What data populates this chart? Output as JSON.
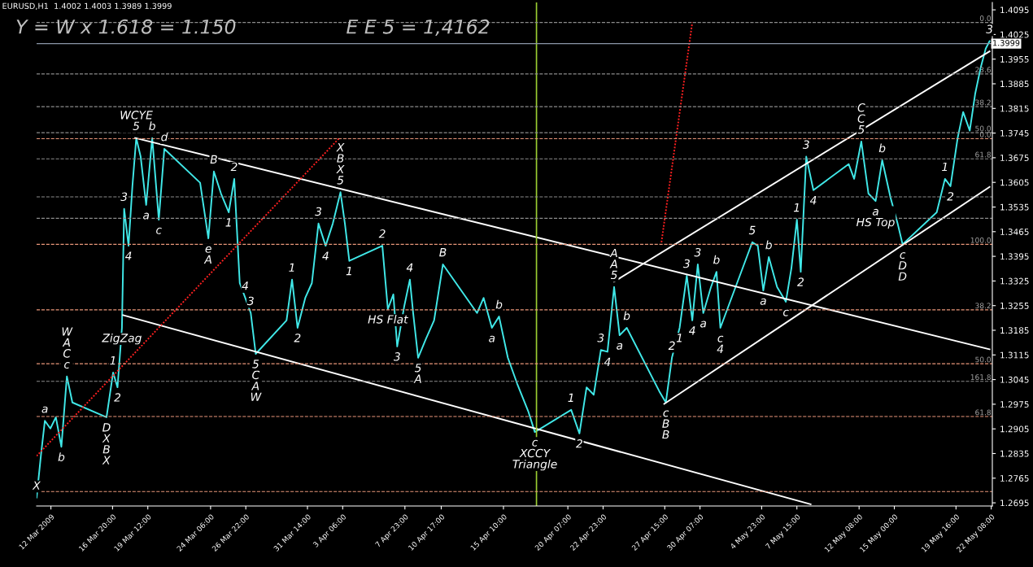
{
  "chart_data": {
    "type": "line",
    "title": "EURUSD,H1  1.4002 1.4003 1.3989 1.3999",
    "xlim": [
      "2009-03-11T02:00",
      "2009-05-22T10:00"
    ],
    "ylim": [
      1.2686,
      1.4116
    ],
    "xticks": [
      {
        "value": "2009-03-12T04:00",
        "label": "12 Mar 2009"
      },
      {
        "value": "2009-03-16T20:00",
        "label": "16 Mar 20:00"
      },
      {
        "value": "2009-03-19T12:00",
        "label": "19 Mar 12:00"
      },
      {
        "value": "2009-03-24T06:00",
        "label": "24 Mar 06:00"
      },
      {
        "value": "2009-03-26T22:00",
        "label": "26 Mar 22:00"
      },
      {
        "value": "2009-03-31T14:00",
        "label": "31 Mar 14:00"
      },
      {
        "value": "2009-04-03T06:00",
        "label": "3 Apr 06:00"
      },
      {
        "value": "2009-04-07T23:00",
        "label": "7 Apr 23:00"
      },
      {
        "value": "2009-04-10T17:00",
        "label": "10 Apr 17:00"
      },
      {
        "value": "2009-04-15T10:00",
        "label": "15 Apr 10:00"
      },
      {
        "value": "2009-04-20T07:00",
        "label": "20 Apr 07:00"
      },
      {
        "value": "2009-04-22T23:00",
        "label": "22 Apr 23:00"
      },
      {
        "value": "2009-04-27T15:00",
        "label": "27 Apr 15:00"
      },
      {
        "value": "2009-04-30T07:00",
        "label": "30 Apr 07:00"
      },
      {
        "value": "2009-05-04T23:00",
        "label": "4 May 23:00"
      },
      {
        "value": "2009-05-07T15:00",
        "label": "7 May 15:00"
      },
      {
        "value": "2009-05-12T08:00",
        "label": "12 May 08:00"
      },
      {
        "value": "2009-05-15T00:00",
        "label": "15 May 00:00"
      },
      {
        "value": "2009-05-19T16:00",
        "label": "19 May 16:00"
      },
      {
        "value": "2009-05-22T08:00",
        "label": "22 May 08:00"
      }
    ],
    "yticks": [
      1.4095,
      1.4025,
      1.3955,
      1.3885,
      1.3815,
      1.3745,
      1.3675,
      1.3605,
      1.3535,
      1.3465,
      1.3395,
      1.3325,
      1.3255,
      1.3185,
      1.3115,
      1.3045,
      1.2975,
      1.2905,
      1.2835,
      1.2765,
      1.2695
    ],
    "grid": false,
    "legend": false,
    "series": [
      {
        "color": "#40e8e8",
        "x": [
          "2009-03-11T02:00",
          "2009-03-11T10:00",
          "2009-03-11T17:00",
          "2009-03-12T03:00",
          "2009-03-12T13:00",
          "2009-03-12T23:00",
          "2009-03-13T09:00",
          "2009-03-13T19:00",
          "2009-03-16T09:00",
          "2009-03-16T21:00",
          "2009-03-17T05:00",
          "2009-03-17T13:00",
          "2009-03-17T17:00",
          "2009-03-18T01:00",
          "2009-03-18T08:00",
          "2009-03-18T15:00",
          "2009-03-18T23:00",
          "2009-03-19T09:00",
          "2009-03-19T20:00",
          "2009-03-20T08:00",
          "2009-03-20T18:00",
          "2009-03-23T11:00",
          "2009-03-24T02:00",
          "2009-03-24T12:00",
          "2009-03-25T01:00",
          "2009-03-25T15:00",
          "2009-03-26T01:00",
          "2009-03-26T11:00",
          "2009-03-26T21:00",
          "2009-03-27T07:00",
          "2009-03-27T16:00",
          "2009-03-30T00:00",
          "2009-03-30T10:00",
          "2009-03-30T20:00",
          "2009-03-31T10:00",
          "2009-03-31T22:00",
          "2009-04-01T10:00",
          "2009-04-01T23:00",
          "2009-04-02T12:00",
          "2009-04-03T02:00",
          "2009-04-03T10:00",
          "2009-04-03T18:00",
          "2009-04-06T06:00",
          "2009-04-06T16:00",
          "2009-04-07T02:00",
          "2009-04-07T09:00",
          "2009-04-07T22:00",
          "2009-04-08T08:00",
          "2009-04-08T14:00",
          "2009-04-08T23:00",
          "2009-04-09T13:00",
          "2009-04-10T04:00",
          "2009-04-10T20:00",
          "2009-04-13T10:00",
          "2009-04-13T22:00",
          "2009-04-14T13:00",
          "2009-04-15T02:00",
          "2009-04-15T18:00",
          "2009-04-16T11:00",
          "2009-04-17T07:00",
          "2009-04-17T19:00",
          "2009-04-20T13:00",
          "2009-04-21T04:00",
          "2009-04-21T17:00",
          "2009-04-22T06:00",
          "2009-04-22T19:00",
          "2009-04-23T07:00",
          "2009-04-23T19:00",
          "2009-04-24T05:00",
          "2009-04-24T18:00",
          "2009-04-27T05:00",
          "2009-04-27T17:00",
          "2009-04-28T04:00",
          "2009-04-28T18:00",
          "2009-04-29T07:00",
          "2009-04-29T17:00",
          "2009-04-30T03:00",
          "2009-04-30T13:00",
          "2009-05-01T03:00",
          "2009-05-01T13:00",
          "2009-05-01T20:00",
          "2009-05-04T06:00",
          "2009-05-04T16:00",
          "2009-05-05T02:00",
          "2009-05-05T12:00",
          "2009-05-06T03:00",
          "2009-05-06T19:00",
          "2009-05-07T05:00",
          "2009-05-07T15:00",
          "2009-05-07T22:00",
          "2009-05-08T08:00",
          "2009-05-08T21:00",
          "2009-05-11T13:00",
          "2009-05-11T23:00",
          "2009-05-12T12:00",
          "2009-05-13T01:00",
          "2009-05-13T14:00",
          "2009-05-14T02:00",
          "2009-05-14T17:00",
          "2009-05-15T06:00",
          "2009-05-15T15:00",
          "2009-05-18T05:00",
          "2009-05-18T20:00",
          "2009-05-19T06:00",
          "2009-05-19T19:00",
          "2009-05-20T05:00",
          "2009-05-20T17:00",
          "2009-05-21T03:00",
          "2009-05-21T13:00",
          "2009-05-21T22:00",
          "2009-05-22T05:00"
        ],
        "values": [
          1.271,
          1.2832,
          1.2928,
          1.2906,
          1.2938,
          1.2854,
          1.3054,
          1.298,
          1.2938,
          1.3065,
          1.3023,
          1.3192,
          1.353,
          1.3425,
          1.3594,
          1.3731,
          1.3678,
          1.3541,
          1.3731,
          1.3499,
          1.37,
          1.3604,
          1.3446,
          1.3636,
          1.3573,
          1.352,
          1.3615,
          1.3319,
          1.3277,
          1.3234,
          1.3118,
          1.3213,
          1.3329,
          1.3192,
          1.3277,
          1.3319,
          1.3488,
          1.3425,
          1.3488,
          1.3577,
          1.3488,
          1.3382,
          1.3425,
          1.3245,
          1.3287,
          1.3139,
          1.3255,
          1.3329,
          1.3234,
          1.3107,
          1.316,
          1.3213,
          1.3372,
          1.3234,
          1.3277,
          1.3192,
          1.3224,
          1.3107,
          1.3033,
          1.2955,
          1.2896,
          1.2959,
          1.2892,
          1.3023,
          1.3002,
          1.3129,
          1.3124,
          1.3308,
          1.3171,
          1.3192,
          1.3012,
          1.298,
          1.3107,
          1.3192,
          1.334,
          1.3213,
          1.3372,
          1.3234,
          1.3308,
          1.3351,
          1.3192,
          1.3435,
          1.3425,
          1.3298,
          1.3393,
          1.3308,
          1.3266,
          1.3361,
          1.3499,
          1.3351,
          1.3678,
          1.3583,
          1.3657,
          1.3615,
          1.3721,
          1.3573,
          1.3552,
          1.3668,
          1.3562,
          1.3488,
          1.3429,
          1.352,
          1.3615,
          1.3594,
          1.3731,
          1.3805,
          1.3752,
          1.3858,
          1.3932,
          1.3985,
          1.4006
        ]
      },
      {
        "type": "line",
        "color": "#ffffff",
        "x": [
          "2009-03-18T13:00",
          "2009-05-22T05:00"
        ],
        "values": [
          1.3731,
          1.3131
        ]
      },
      {
        "type": "line",
        "color": "#ffffff",
        "x": [
          "2009-03-17T15:00",
          "2009-05-08T16:00"
        ],
        "values": [
          1.3228,
          1.2691
        ]
      },
      {
        "type": "line",
        "color": "#ffffff",
        "x": [
          "2009-04-23T19:00",
          "2009-05-22T05:00"
        ],
        "values": [
          1.3323,
          1.3977
        ]
      },
      {
        "type": "line",
        "color": "#ffffff",
        "x": [
          "2009-04-27T14:00",
          "2009-05-22T05:00"
        ],
        "values": [
          1.2976,
          1.3592
        ]
      },
      {
        "type": "line",
        "color": "#ff2020",
        "line_style": "dotted",
        "x": [
          "2009-03-11T02:00",
          "2009-04-03T00:00"
        ],
        "values": [
          1.2828,
          1.3731
        ]
      },
      {
        "type": "line",
        "color": "#ff2020",
        "line_style": "dotted",
        "x": [
          "2009-04-27T09:00",
          "2009-04-29T17:00"
        ],
        "values": [
          1.3435,
          1.4059
        ]
      }
    ],
    "ref_lines": [
      {
        "axis": "x",
        "value": "2009-04-17T22:00",
        "color": "#9acd32",
        "line_style": "solid"
      },
      {
        "axis": "y",
        "value": 1.3999,
        "label": "1.3999",
        "color": "#8c96a8",
        "line_style": "solid"
      },
      {
        "axis": "y",
        "value": 1.4059,
        "color": "#8c8c8c",
        "line_style": "dashed"
      },
      {
        "axis": "y",
        "value": 1.3913,
        "color": "#8c8c8c",
        "line_style": "dashed"
      },
      {
        "axis": "y",
        "value": 1.382,
        "color": "#8c8c8c",
        "line_style": "dashed"
      },
      {
        "axis": "y",
        "value": 1.3746,
        "color": "#8c8c8c",
        "line_style": "dashed"
      },
      {
        "axis": "y",
        "value": 1.3729,
        "color": "#e9967a",
        "line_style": "dashed"
      },
      {
        "axis": "y",
        "value": 1.3672,
        "color": "#8c8c8c",
        "line_style": "dashed"
      },
      {
        "axis": "y",
        "value": 1.3564,
        "color": "#8c8c8c",
        "line_style": "dashed"
      },
      {
        "axis": "y",
        "value": 1.3503,
        "color": "#8c8c8c",
        "line_style": "dashed"
      },
      {
        "axis": "y",
        "value": 1.3429,
        "color": "#e9967a",
        "line_style": "dashed"
      },
      {
        "axis": "y",
        "value": 1.3243,
        "color": "#e9967a",
        "line_style": "dashed"
      },
      {
        "axis": "y",
        "value": 1.309,
        "color": "#e9967a",
        "line_style": "dashed"
      },
      {
        "axis": "y",
        "value": 1.304,
        "color": "#8c8c8c",
        "line_style": "dashed"
      },
      {
        "axis": "y",
        "value": 1.294,
        "color": "#e9967a",
        "line_style": "dashed"
      },
      {
        "axis": "y",
        "value": 1.2727,
        "color": "#e9967a",
        "line_style": "dashed"
      }
    ],
    "annotations": [
      "Y = W x 1.618 = 1.150",
      "E E 5 = 1,4162",
      {
        "text": "0.0",
        "x": "2009-05-22T08:00",
        "y": 1.4059
      },
      {
        "text": "23.6",
        "x": "2009-05-22T08:00",
        "y": 1.3913
      },
      {
        "text": "38.2",
        "x": "2009-05-22T08:00",
        "y": 1.382
      },
      {
        "text": "50.0",
        "x": "2009-05-22T08:00",
        "y": 1.3746
      },
      {
        "text": "0.0",
        "x": "2009-05-22T08:00",
        "y": 1.3729
      },
      {
        "text": "61.8",
        "x": "2009-05-22T08:00",
        "y": 1.3672
      },
      {
        "text": "100.0",
        "x": "2009-05-22T08:00",
        "y": 1.3429
      },
      {
        "text": "38.2",
        "x": "2009-05-22T08:00",
        "y": 1.3243
      },
      {
        "text": "50.0",
        "x": "2009-05-22T08:00",
        "y": 1.309
      },
      {
        "text": "161.8",
        "x": "2009-05-22T08:00",
        "y": 1.304
      },
      {
        "text": "61.8",
        "x": "2009-05-22T08:00",
        "y": 1.294
      },
      {
        "text": "X",
        "x": "2009-03-11T02:00",
        "y": 1.271
      },
      {
        "text": "a",
        "x": "2009-03-11T17:00",
        "y": 1.2928
      },
      {
        "text": "b",
        "x": "2009-03-12T23:00",
        "y": 1.2854
      },
      {
        "text": "W\nA\nC\nc",
        "x": "2009-03-13T09:00",
        "y": 1.3054
      },
      {
        "text": "D\nX\nB\nX",
        "x": "2009-03-16T09:00",
        "y": 1.2938
      },
      {
        "text": "1",
        "x": "2009-03-16T21:00",
        "y": 1.3065
      },
      {
        "text": "2",
        "x": "2009-03-17T05:00",
        "y": 1.3023
      },
      {
        "text": "ZigZag",
        "x": "2009-03-17T13:00",
        "y": 1.3192
      },
      {
        "text": "3",
        "x": "2009-03-17T17:00",
        "y": 1.353
      },
      {
        "text": "4",
        "x": "2009-03-18T01:00",
        "y": 1.3425
      },
      {
        "text": "WCYE\n5",
        "x": "2009-03-18T15:00",
        "y": 1.3731
      },
      {
        "text": "a",
        "x": "2009-03-19T09:00",
        "y": 1.3541
      },
      {
        "text": "b",
        "x": "2009-03-19T20:00",
        "y": 1.3731
      },
      {
        "text": "c",
        "x": "2009-03-20T08:00",
        "y": 1.3499
      },
      {
        "text": "d",
        "x": "2009-03-20T18:00",
        "y": 1.37
      },
      {
        "text": "e\nA",
        "x": "2009-03-24T02:00",
        "y": 1.3446
      },
      {
        "text": "B",
        "x": "2009-03-24T12:00",
        "y": 1.3636
      },
      {
        "text": "1",
        "x": "2009-03-25T15:00",
        "y": 1.352
      },
      {
        "text": "2",
        "x": "2009-03-26T01:00",
        "y": 1.3615
      },
      {
        "text": "4",
        "x": "2009-03-26T21:00",
        "y": 1.3277
      },
      {
        "text": "3",
        "x": "2009-03-27T07:00",
        "y": 1.3234
      },
      {
        "text": "5\nC\nA\nW",
        "x": "2009-03-27T16:00",
        "y": 1.3118
      },
      {
        "text": "1",
        "x": "2009-03-30T10:00",
        "y": 1.3329
      },
      {
        "text": "2",
        "x": "2009-03-30T20:00",
        "y": 1.3192
      },
      {
        "text": "3",
        "x": "2009-04-01T10:00",
        "y": 1.3488
      },
      {
        "text": "4",
        "x": "2009-04-01T23:00",
        "y": 1.3425
      },
      {
        "text": "X\nB\nX\n5",
        "x": "2009-04-03T02:00",
        "y": 1.3577
      },
      {
        "text": "1",
        "x": "2009-04-03T18:00",
        "y": 1.3382
      },
      {
        "text": "2",
        "x": "2009-04-06T06:00",
        "y": 1.3425
      },
      {
        "text": "HS Flat",
        "x": "2009-04-06T16:00",
        "y": 1.3245
      },
      {
        "text": "3",
        "x": "2009-04-07T09:00",
        "y": 1.3139
      },
      {
        "text": "4",
        "x": "2009-04-08T08:00",
        "y": 1.3329
      },
      {
        "text": "5\nA",
        "x": "2009-04-08T23:00",
        "y": 1.3107
      },
      {
        "text": "B",
        "x": "2009-04-10T20:00",
        "y": 1.3372
      },
      {
        "text": "a",
        "x": "2009-04-14T13:00",
        "y": 1.3192
      },
      {
        "text": "b",
        "x": "2009-04-15T02:00",
        "y": 1.3224
      },
      {
        "text": "c\nXCCY\nTriangle",
        "x": "2009-04-17T19:00",
        "y": 1.2896
      },
      {
        "text": "1",
        "x": "2009-04-20T13:00",
        "y": 1.2959
      },
      {
        "text": "2",
        "x": "2009-04-21T04:00",
        "y": 1.2892
      },
      {
        "text": "3",
        "x": "2009-04-22T19:00",
        "y": 1.3129
      },
      {
        "text": "4",
        "x": "2009-04-23T07:00",
        "y": 1.3124
      },
      {
        "text": "A\nA\n5",
        "x": "2009-04-23T19:00",
        "y": 1.3308
      },
      {
        "text": "a",
        "x": "2009-04-24T05:00",
        "y": 1.3171
      },
      {
        "text": "b",
        "x": "2009-04-24T18:00",
        "y": 1.3192
      },
      {
        "text": "c\nB\nB",
        "x": "2009-04-27T17:00",
        "y": 1.298
      },
      {
        "text": "2",
        "x": "2009-04-28T04:00",
        "y": 1.3107
      },
      {
        "text": "1",
        "x": "2009-04-28T18:00",
        "y": 1.3192
      },
      {
        "text": "3",
        "x": "2009-04-29T07:00",
        "y": 1.334
      },
      {
        "text": "4",
        "x": "2009-04-29T17:00",
        "y": 1.3213
      },
      {
        "text": "3",
        "x": "2009-04-30T03:00",
        "y": 1.3372
      },
      {
        "text": "a",
        "x": "2009-04-30T13:00",
        "y": 1.3234
      },
      {
        "text": "b",
        "x": "2009-05-01T13:00",
        "y": 1.3351
      },
      {
        "text": "c\n4",
        "x": "2009-05-01T20:00",
        "y": 1.3192
      },
      {
        "text": "5",
        "x": "2009-05-04T06:00",
        "y": 1.3435
      },
      {
        "text": "a",
        "x": "2009-05-05T02:00",
        "y": 1.3298
      },
      {
        "text": "b",
        "x": "2009-05-05T12:00",
        "y": 1.3393
      },
      {
        "text": "c",
        "x": "2009-05-06T19:00",
        "y": 1.3266
      },
      {
        "text": "1",
        "x": "2009-05-07T15:00",
        "y": 1.3499
      },
      {
        "text": "2",
        "x": "2009-05-07T22:00",
        "y": 1.3351
      },
      {
        "text": "3",
        "x": "2009-05-08T08:00",
        "y": 1.3678
      },
      {
        "text": "4",
        "x": "2009-05-08T21:00",
        "y": 1.3583
      },
      {
        "text": "C\nC\n5",
        "x": "2009-05-12T12:00",
        "y": 1.3721
      },
      {
        "text": "a\nHS Top",
        "x": "2009-05-13T14:00",
        "y": 1.3552
      },
      {
        "text": "b",
        "x": "2009-05-14T02:00",
        "y": 1.3668
      },
      {
        "text": "c\nD\nD",
        "x": "2009-05-15T15:00",
        "y": 1.3429
      },
      {
        "text": "1",
        "x": "2009-05-18T20:00",
        "y": 1.3615
      },
      {
        "text": "2",
        "x": "2009-05-19T06:00",
        "y": 1.3594
      },
      {
        "text": "3",
        "x": "2009-05-22T05:00",
        "y": 1.4006
      }
    ]
  }
}
